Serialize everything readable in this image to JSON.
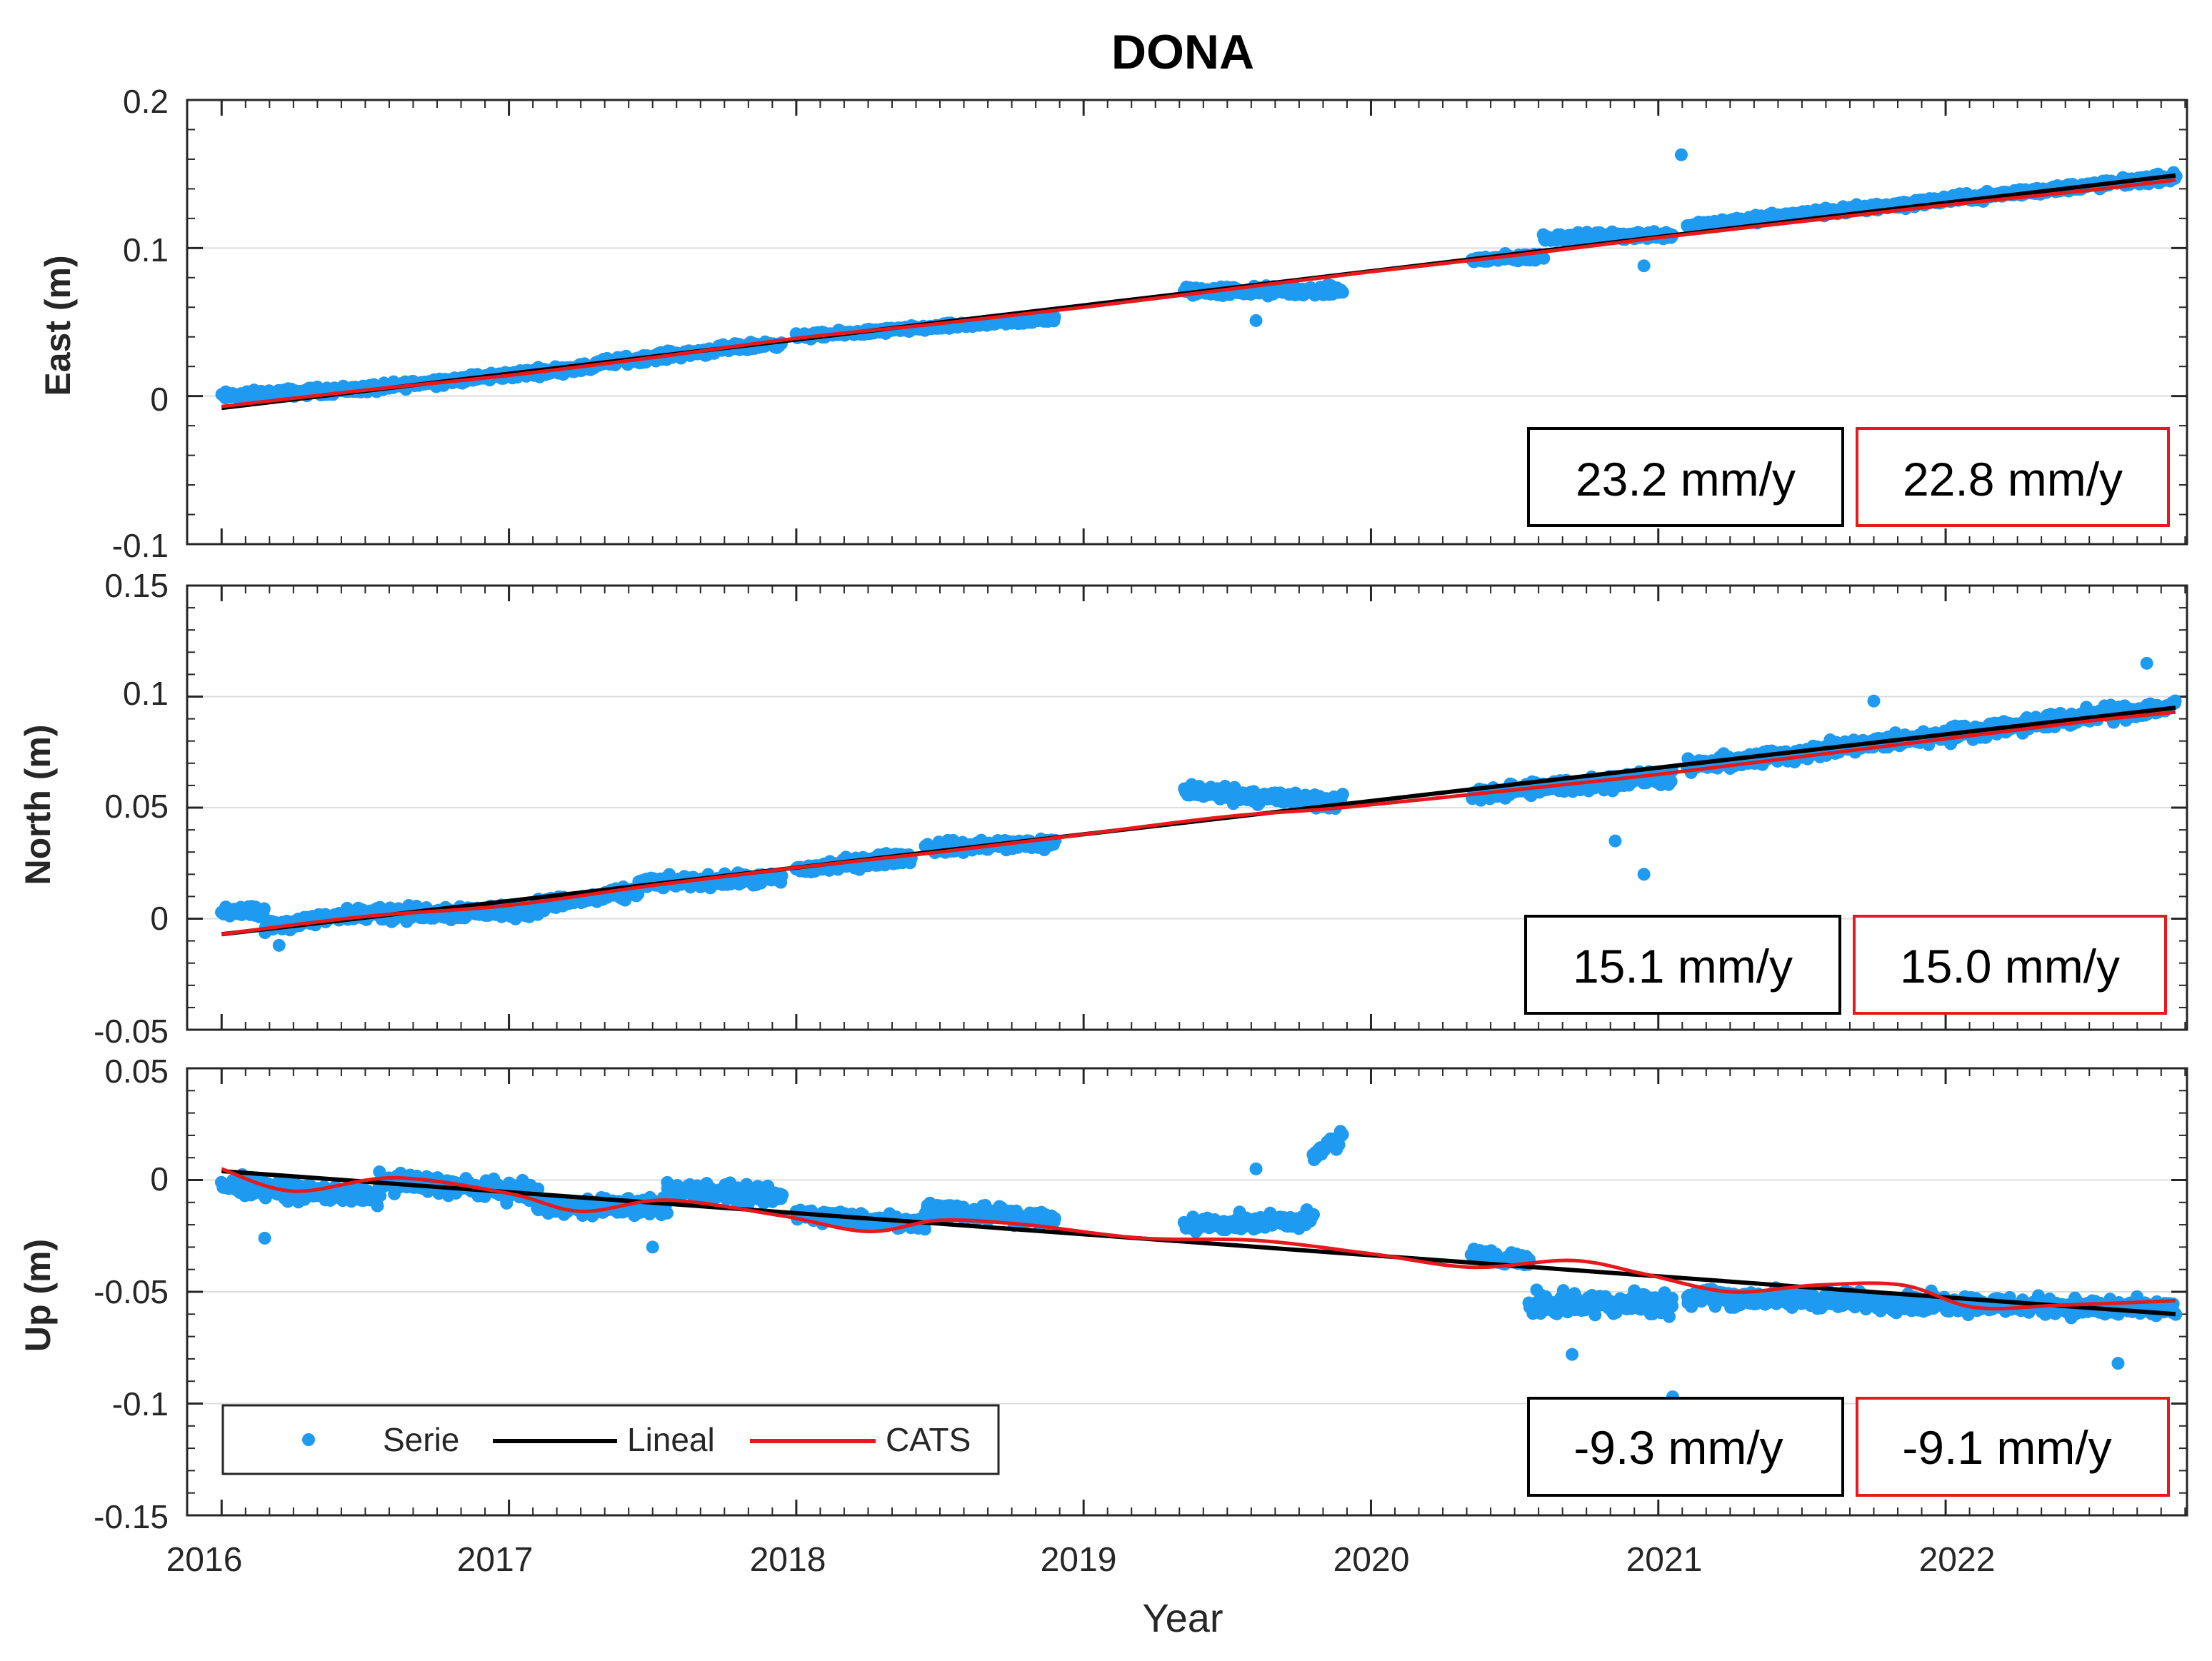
{
  "chart_data": {
    "type": "scatter",
    "title": "DONA",
    "xlabel": "Year",
    "xlim": [
      2016.0,
      2022.8
    ],
    "x_ticks": [
      "2016",
      "2017",
      "2018",
      "2019",
      "2020",
      "2021",
      "2022"
    ],
    "grid": "horizontal",
    "legend": {
      "placement": "bottom-left of Up panel",
      "entries": [
        "Serie",
        "Lineal",
        "CATS"
      ]
    },
    "colors": {
      "serie": "#1e9bf0",
      "lineal": "#000000",
      "cats": "#e8191c"
    },
    "panels": [
      {
        "ylabel": "East (m)",
        "ylim": [
          -0.1,
          0.2
        ],
        "y_ticks": [
          "-0.1",
          "0",
          "0.1",
          "0.2"
        ],
        "lineal_rate": "23.2 mm/y",
        "cats_rate": "22.8 mm/y",
        "series": [
          {
            "name": "Serie",
            "segments": [
              {
                "x": [
                  2016.0,
                  2016.6
                ],
                "center": [
                  0.0,
                  0.006
                ],
                "noise": 0.004
              },
              {
                "x": [
                  2016.6,
                  2017.3
                ],
                "center": [
                  0.007,
                  0.02
                ],
                "noise": 0.004
              },
              {
                "x": [
                  2017.3,
                  2017.95
                ],
                "center": [
                  0.022,
                  0.036
                ],
                "noise": 0.004
              },
              {
                "x": [
                  2018.0,
                  2018.45
                ],
                "center": [
                  0.04,
                  0.046
                ],
                "noise": 0.003
              },
              {
                "x": [
                  2018.45,
                  2018.9
                ],
                "center": [
                  0.046,
                  0.052
                ],
                "noise": 0.003
              },
              {
                "x": [
                  2019.35,
                  2019.9
                ],
                "center": [
                  0.071,
                  0.071
                ],
                "noise": 0.005
              },
              {
                "x": [
                  2020.35,
                  2020.6
                ],
                "center": [
                  0.092,
                  0.094
                ],
                "noise": 0.004
              },
              {
                "x": [
                  2020.6,
                  2021.05
                ],
                "center": [
                  0.107,
                  0.109
                ],
                "noise": 0.004
              },
              {
                "x": [
                  2021.1,
                  2022.8
                ],
                "center": [
                  0.115,
                  0.148
                ],
                "noise": 0.004
              }
            ],
            "outliers": [
              [
                2021.08,
                0.163
              ],
              [
                2020.95,
                0.088
              ],
              [
                2019.6,
                0.051
              ]
            ]
          },
          {
            "name": "Lineal",
            "x": [
              2016.0,
              2022.8
            ],
            "y": [
              -0.008,
              0.149
            ]
          },
          {
            "name": "CATS",
            "x": [
              2016.0,
              2016.5,
              2017.0,
              2017.5,
              2018.0,
              2018.5,
              2019.0,
              2019.5,
              2020.0,
              2020.5,
              2021.0,
              2021.5,
              2022.0,
              2022.5,
              2022.8
            ],
            "y": [
              -0.007,
              0.004,
              0.014,
              0.026,
              0.039,
              0.049,
              0.06,
              0.072,
              0.084,
              0.095,
              0.107,
              0.118,
              0.129,
              0.139,
              0.146
            ]
          }
        ]
      },
      {
        "ylabel": "North (m)",
        "ylim": [
          -0.05,
          0.15
        ],
        "y_ticks": [
          "-0.05",
          "0",
          "0.05",
          "0.1",
          "0.15"
        ],
        "lineal_rate": "15.1 mm/y",
        "cats_rate": "15.0 mm/y",
        "series": [
          {
            "name": "Serie",
            "segments": [
              {
                "x": [
                  2016.0,
                  2016.15
                ],
                "center": [
                  0.004,
                  0.002
                ],
                "noise": 0.004
              },
              {
                "x": [
                  2016.15,
                  2016.55
                ],
                "center": [
                  -0.004,
                  0.004
                ],
                "noise": 0.004
              },
              {
                "x": [
                  2016.55,
                  2017.1
                ],
                "center": [
                  0.002,
                  0.004
                ],
                "noise": 0.005
              },
              {
                "x": [
                  2017.1,
                  2017.45
                ],
                "center": [
                  0.006,
                  0.012
                ],
                "noise": 0.004
              },
              {
                "x": [
                  2017.45,
                  2017.95
                ],
                "center": [
                  0.016,
                  0.018
                ],
                "noise": 0.004
              },
              {
                "x": [
                  2018.0,
                  2018.4
                ],
                "center": [
                  0.022,
                  0.028
                ],
                "noise": 0.004
              },
              {
                "x": [
                  2018.45,
                  2018.9
                ],
                "center": [
                  0.032,
                  0.034
                ],
                "noise": 0.004
              },
              {
                "x": [
                  2019.35,
                  2019.9
                ],
                "center": [
                  0.058,
                  0.052
                ],
                "noise": 0.005
              },
              {
                "x": [
                  2020.35,
                  2021.05
                ],
                "center": [
                  0.056,
                  0.064
                ],
                "noise": 0.005
              },
              {
                "x": [
                  2021.1,
                  2022.8
                ],
                "center": [
                  0.068,
                  0.096
                ],
                "noise": 0.005
              }
            ],
            "outliers": [
              [
                2020.85,
                0.035
              ],
              [
                2020.95,
                0.02
              ],
              [
                2021.75,
                0.098
              ],
              [
                2022.7,
                0.115
              ],
              [
                2016.2,
                -0.012
              ]
            ]
          },
          {
            "name": "Lineal",
            "x": [
              2016.0,
              2022.8
            ],
            "y": [
              -0.007,
              0.095
            ]
          },
          {
            "name": "CATS",
            "x": [
              2016.0,
              2016.5,
              2017.0,
              2017.5,
              2018.0,
              2018.5,
              2019.0,
              2019.5,
              2019.9,
              2020.5,
              2021.0,
              2021.5,
              2022.0,
              2022.5,
              2022.8
            ],
            "y": [
              -0.007,
              0.001,
              0.006,
              0.015,
              0.023,
              0.03,
              0.038,
              0.046,
              0.05,
              0.058,
              0.065,
              0.073,
              0.081,
              0.089,
              0.093
            ]
          }
        ]
      },
      {
        "ylabel": "Up (m)",
        "ylim": [
          -0.15,
          0.05
        ],
        "y_ticks": [
          "-0.15",
          "-0.1",
          "-0.05",
          "0",
          "0.05"
        ],
        "lineal_rate": "-9.3 mm/y",
        "cats_rate": "-9.1 mm/y",
        "series": [
          {
            "name": "Serie",
            "segments": [
              {
                "x": [
                  2016.0,
                  2016.55
                ],
                "center": [
                  -0.002,
                  -0.008
                ],
                "noise": 0.006
              },
              {
                "x": [
                  2016.55,
                  2017.1
                ],
                "center": [
                  0.0,
                  -0.006
                ],
                "noise": 0.006
              },
              {
                "x": [
                  2017.1,
                  2017.55
                ],
                "center": [
                  -0.012,
                  -0.012
                ],
                "noise": 0.006
              },
              {
                "x": [
                  2017.55,
                  2017.95
                ],
                "center": [
                  -0.004,
                  -0.008
                ],
                "noise": 0.006
              },
              {
                "x": [
                  2018.0,
                  2018.45
                ],
                "center": [
                  -0.015,
                  -0.02
                ],
                "noise": 0.005
              },
              {
                "x": [
                  2018.45,
                  2018.9
                ],
                "center": [
                  -0.012,
                  -0.018
                ],
                "noise": 0.006
              },
              {
                "x": [
                  2019.35,
                  2019.8
                ],
                "center": [
                  -0.02,
                  -0.018
                ],
                "noise": 0.005
              },
              {
                "x": [
                  2019.8,
                  2019.9
                ],
                "center": [
                  0.01,
                  0.02
                ],
                "noise": 0.006
              },
              {
                "x": [
                  2020.35,
                  2020.55
                ],
                "center": [
                  -0.033,
                  -0.036
                ],
                "noise": 0.004
              },
              {
                "x": [
                  2020.55,
                  2021.05
                ],
                "center": [
                  -0.055,
                  -0.055
                ],
                "noise": 0.008
              },
              {
                "x": [
                  2021.1,
                  2022.8
                ],
                "center": [
                  -0.052,
                  -0.058
                ],
                "noise": 0.006
              }
            ],
            "outliers": [
              [
                2016.15,
                -0.026
              ],
              [
                2017.5,
                -0.03
              ],
              [
                2020.7,
                -0.078
              ],
              [
                2021.05,
                -0.097
              ],
              [
                2022.6,
                -0.082
              ],
              [
                2019.6,
                0.005
              ]
            ]
          },
          {
            "name": "Lineal",
            "x": [
              2016.0,
              2022.8
            ],
            "y": [
              0.004,
              -0.06
            ]
          },
          {
            "name": "CATS",
            "x": [
              2016.0,
              2016.25,
              2016.6,
              2017.0,
              2017.25,
              2017.55,
              2017.95,
              2018.25,
              2018.5,
              2018.8,
              2019.2,
              2019.6,
              2020.0,
              2020.35,
              2020.7,
              2020.95,
              2021.25,
              2021.55,
              2021.85,
              2022.1,
              2022.4,
              2022.8
            ],
            "y": [
              0.005,
              -0.005,
              0.001,
              -0.006,
              -0.014,
              -0.009,
              -0.016,
              -0.023,
              -0.018,
              -0.02,
              -0.026,
              -0.027,
              -0.033,
              -0.039,
              -0.036,
              -0.042,
              -0.05,
              -0.047,
              -0.047,
              -0.057,
              -0.056,
              -0.054
            ]
          }
        ]
      }
    ]
  }
}
